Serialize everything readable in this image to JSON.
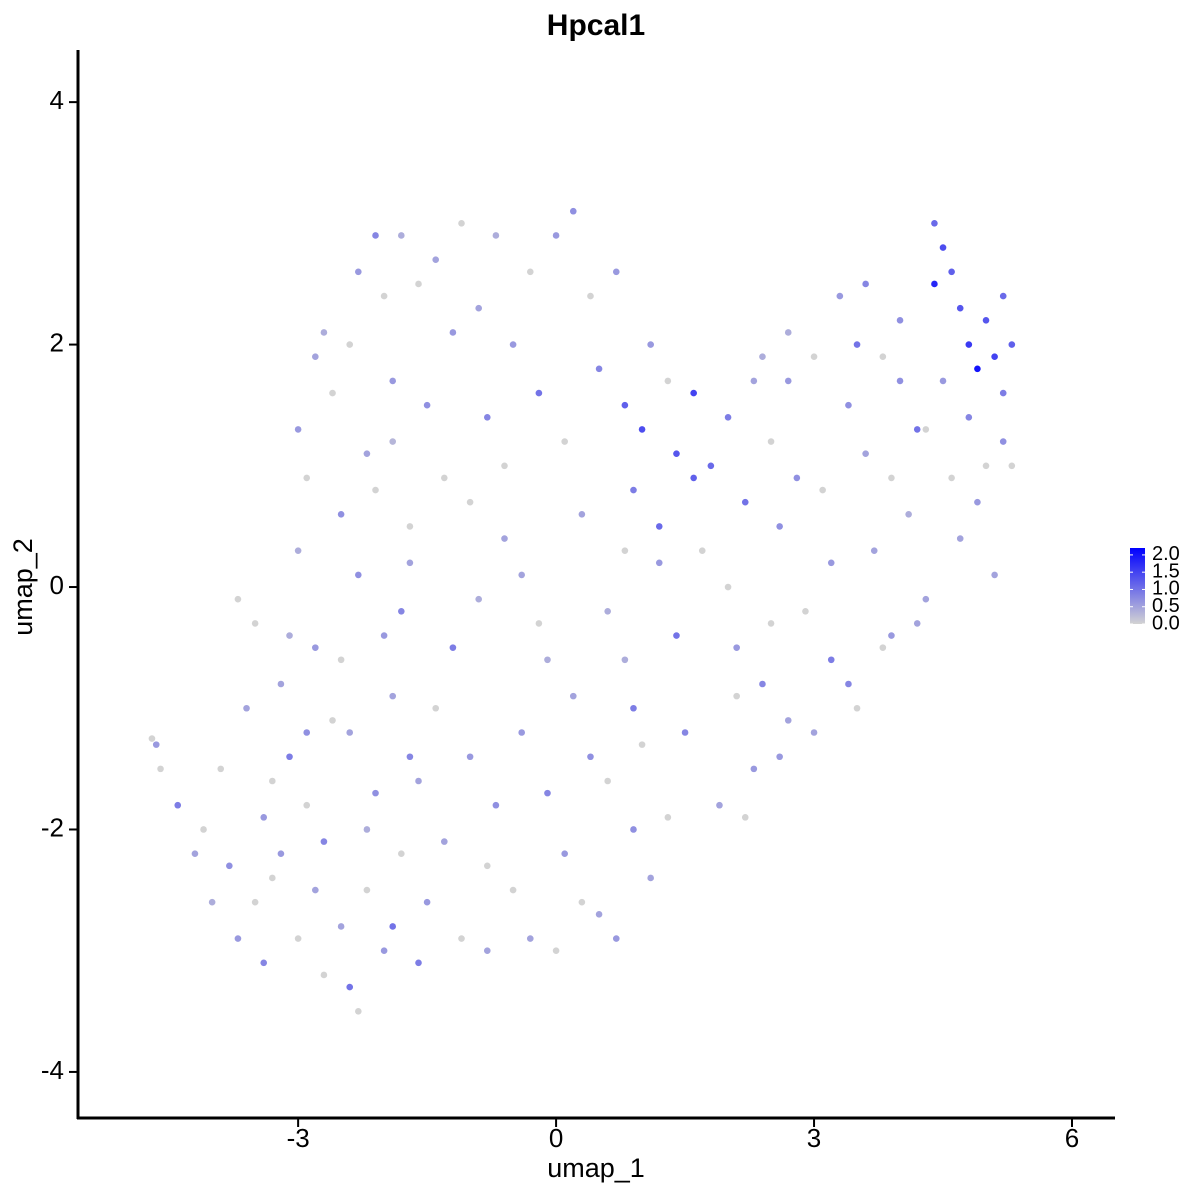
{
  "chart_data": {
    "type": "scatter",
    "title": "Hpcal1",
    "x_label": "umap_1",
    "y_label": "umap_2",
    "xlim": [
      -5.56,
      6.5
    ],
    "ylim": [
      -4.38,
      4.43
    ],
    "xticks": [
      -3,
      0,
      3,
      6
    ],
    "yticks": [
      -4,
      -2,
      0,
      2,
      4
    ],
    "color_low": "#d3d3d3",
    "color_high": "#0000ff",
    "colorlim": [
      0,
      2.2
    ],
    "colorticks": [
      {
        "value": 0,
        "label": "0.0"
      },
      {
        "value": 0.5,
        "label": "0.5"
      },
      {
        "value": 1,
        "label": "1.0"
      },
      {
        "value": 1.5,
        "label": "1.5"
      },
      {
        "value": 2,
        "label": "2.0"
      }
    ],
    "legend_position": "right",
    "x": [
      -4.7,
      -4.65,
      -4.6,
      -4.4,
      -4.2,
      -4.1,
      -4.0,
      -3.9,
      -3.8,
      -3.7,
      -3.6,
      -3.5,
      -3.4,
      -3.3,
      -3.2,
      -3.1,
      -3.0,
      -2.9,
      -2.8,
      -2.7,
      -3.5,
      -3.4,
      -3.3,
      -3.2,
      -3.1,
      -3.0,
      -2.9,
      -2.8,
      -2.7,
      -2.6,
      -2.5,
      -2.4,
      -2.3,
      -2.2,
      -2.1,
      -2.0,
      -1.9,
      -1.8,
      -1.7,
      -1.6,
      -2.5,
      -2.4,
      -2.3,
      -2.2,
      -2.1,
      -2.0,
      -1.9,
      -1.8,
      -1.7,
      -1.6,
      -3.0,
      -2.9,
      -2.8,
      -2.7,
      -2.6,
      -2.5,
      -2.4,
      -2.3,
      -2.2,
      -2.1,
      -2.0,
      -1.9,
      -1.8,
      -1.7,
      -1.6,
      -1.5,
      -1.4,
      -1.3,
      -1.2,
      -1.1,
      -1.5,
      -1.4,
      -1.3,
      -1.2,
      -1.1,
      -1.0,
      -0.9,
      -0.8,
      -0.7,
      -0.6,
      -1.0,
      -0.9,
      -0.8,
      -0.7,
      -0.6,
      -0.5,
      -0.4,
      -0.3,
      -0.2,
      -0.1,
      -0.5,
      -0.4,
      -0.3,
      -0.2,
      -0.1,
      0.0,
      0.1,
      0.2,
      0.3,
      0.4,
      0.0,
      0.1,
      0.2,
      0.3,
      0.4,
      0.5,
      0.6,
      0.7,
      0.8,
      0.9,
      0.5,
      0.6,
      0.7,
      0.8,
      0.9,
      1.0,
      1.1,
      1.2,
      1.3,
      1.4,
      0.8,
      0.9,
      1.0,
      1.1,
      1.2,
      1.3,
      1.4,
      1.5,
      1.6,
      1.7,
      1.8,
      1.9,
      2.0,
      2.1,
      2.2,
      2.3,
      2.4,
      2.5,
      2.6,
      2.7,
      2.0,
      2.1,
      2.2,
      2.3,
      2.4,
      2.5,
      2.6,
      2.7,
      2.8,
      2.9,
      3.0,
      3.1,
      3.2,
      3.3,
      3.4,
      3.5,
      3.6,
      3.7,
      3.8,
      3.9,
      3.0,
      3.2,
      3.4,
      3.6,
      3.8,
      4.0,
      4.1,
      4.2,
      4.3,
      4.4,
      4.4,
      4.5,
      4.5,
      4.6,
      4.6,
      4.7,
      4.7,
      4.8,
      4.8,
      4.9,
      4.9,
      5.0,
      5.0,
      5.1,
      5.1,
      5.2,
      5.2,
      5.3,
      5.3,
      5.2,
      3.5,
      3.9,
      4.2,
      4.0,
      4.3,
      1.6,
      2.7,
      -0.8,
      -1.9,
      -3.7
    ],
    "y": [
      -1.25,
      -1.3,
      -1.5,
      -1.8,
      -2.2,
      -2.0,
      -2.6,
      -1.5,
      -2.3,
      -2.9,
      -1.0,
      -2.6,
      -3.1,
      -1.6,
      -2.2,
      -0.4,
      -2.9,
      -1.2,
      -2.5,
      -3.2,
      -0.3,
      -1.9,
      -2.4,
      -0.8,
      -1.4,
      0.3,
      -1.8,
      -0.5,
      -2.1,
      -1.1,
      -2.8,
      -3.3,
      -3.5,
      -2.5,
      -1.7,
      -3.0,
      -0.9,
      -2.2,
      -1.4,
      -3.1,
      -0.6,
      -1.2,
      0.1,
      -2.0,
      0.8,
      -0.4,
      1.2,
      -0.2,
      0.5,
      -1.6,
      1.3,
      0.9,
      1.9,
      2.1,
      1.6,
      0.6,
      2.0,
      2.6,
      1.1,
      2.9,
      2.4,
      1.7,
      2.9,
      0.2,
      2.5,
      1.5,
      2.7,
      0.9,
      2.1,
      3.0,
      -2.6,
      -1.0,
      -2.1,
      -0.5,
      -2.9,
      -1.4,
      -0.1,
      -2.3,
      -1.8,
      0.4,
      0.7,
      2.3,
      1.4,
      2.9,
      1.0,
      2.0,
      0.1,
      2.6,
      1.6,
      -0.6,
      -2.5,
      -1.2,
      -2.9,
      -0.3,
      -1.7,
      -3.0,
      -2.2,
      -0.9,
      -2.6,
      -1.4,
      2.9,
      1.2,
      3.1,
      0.6,
      2.4,
      1.8,
      -0.2,
      2.6,
      0.3,
      -1.0,
      -2.7,
      -1.6,
      -2.9,
      -0.6,
      -2.0,
      -1.3,
      -2.4,
      0.2,
      -1.9,
      -0.4,
      1.5,
      0.8,
      1.3,
      2.0,
      0.5,
      1.7,
      1.1,
      -1.2,
      1.6,
      0.3,
      1.0,
      -1.8,
      1.4,
      -0.9,
      0.7,
      -1.5,
      1.9,
      -0.3,
      0.5,
      -1.1,
      0.0,
      -0.5,
      -1.9,
      1.7,
      -0.8,
      1.2,
      -1.4,
      2.1,
      0.9,
      -0.2,
      -1.2,
      0.8,
      -0.6,
      2.4,
      1.5,
      -1.0,
      2.5,
      0.3,
      1.9,
      -0.4,
      1.9,
      0.2,
      -0.8,
      1.1,
      -0.5,
      2.2,
      0.6,
      1.3,
      -0.1,
      2.5,
      3.0,
      2.8,
      1.7,
      2.6,
      0.9,
      2.3,
      0.4,
      2.0,
      1.4,
      1.8,
      0.7,
      2.2,
      1.0,
      1.9,
      0.1,
      2.4,
      1.2,
      2.0,
      1.0,
      1.6,
      2.0,
      0.9,
      -0.3,
      1.7,
      1.3,
      0.9,
      1.7,
      -3.0,
      -2.8,
      -0.1
    ],
    "values": [
      0,
      0.6,
      0,
      0.9,
      0.5,
      0,
      0.4,
      0,
      0.7,
      0.6,
      0.5,
      0,
      0.8,
      0,
      0.6,
      0.4,
      0,
      0.7,
      0.5,
      0,
      0,
      0.6,
      0,
      0.5,
      0.9,
      0.4,
      0,
      0.6,
      0.8,
      0,
      0.5,
      1.0,
      0,
      0,
      0.7,
      0.6,
      0.5,
      0,
      0.8,
      0.9,
      0,
      0.5,
      0.7,
      0.4,
      0,
      0.6,
      0.3,
      0.8,
      0,
      0.5,
      0.6,
      0,
      0.5,
      0.4,
      0,
      0.7,
      0,
      0.6,
      0.5,
      0.8,
      0,
      0.6,
      0.4,
      0.5,
      0,
      0.7,
      0.5,
      0,
      0.6,
      0,
      0.6,
      0,
      0.5,
      0.9,
      0,
      0.6,
      0.4,
      0,
      0.7,
      0.5,
      0,
      0.5,
      0.8,
      0.4,
      0,
      0.6,
      0.5,
      0,
      1.0,
      0.4,
      0,
      0.6,
      0.5,
      0,
      0.8,
      0,
      0.6,
      0.5,
      0,
      0.7,
      0.6,
      0,
      0.7,
      0.5,
      0,
      0.8,
      0.4,
      0.6,
      0,
      0.9,
      0.5,
      0,
      0.6,
      0.4,
      0.7,
      0,
      0.5,
      0.6,
      0,
      1.0,
      1.2,
      0.9,
      1.4,
      0.6,
      1.1,
      0,
      1.3,
      0.8,
      1.5,
      0,
      1.1,
      0.5,
      0.9,
      0,
      1.0,
      0.6,
      0.4,
      0,
      0.7,
      0.5,
      0,
      0.6,
      0,
      0.5,
      0.8,
      0,
      0.6,
      0.4,
      0.7,
      0,
      0.5,
      0,
      0.9,
      0.6,
      0.7,
      0,
      0.8,
      0.5,
      0,
      0.6,
      0,
      0.6,
      0.8,
      0.5,
      0,
      0.7,
      0.4,
      1.0,
      0.5,
      1.8,
      1.1,
      1.4,
      0.6,
      1.2,
      0,
      1.3,
      0.5,
      1.6,
      0.8,
      2.0,
      0.6,
      1.3,
      0,
      1.5,
      0.5,
      1.1,
      0.7,
      1.2,
      0,
      0.9,
      1.0,
      0,
      0.5,
      0.7,
      0,
      1.2,
      0.6,
      0.5,
      1.0,
      0
    ]
  }
}
